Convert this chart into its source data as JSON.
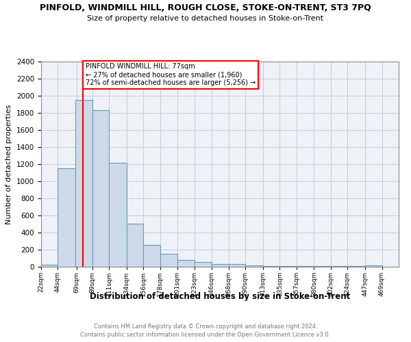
{
  "title": "PINFOLD, WINDMILL HILL, ROUGH CLOSE, STOKE-ON-TRENT, ST3 7PQ",
  "subtitle": "Size of property relative to detached houses in Stoke-on-Trent",
  "xlabel": "Distribution of detached houses by size in Stoke-on-Trent",
  "ylabel": "Number of detached properties",
  "bar_left_edges": [
    22,
    44,
    67,
    89,
    111,
    134,
    156,
    178,
    201,
    223,
    246,
    268,
    290,
    313,
    335,
    357,
    380,
    402,
    424,
    447
  ],
  "bar_widths": [
    22,
    23,
    22,
    22,
    23,
    22,
    22,
    23,
    22,
    23,
    22,
    22,
    23,
    22,
    22,
    23,
    22,
    22,
    23,
    22
  ],
  "bar_heights": [
    25,
    1150,
    1950,
    1830,
    1220,
    505,
    260,
    150,
    80,
    55,
    35,
    35,
    15,
    10,
    8,
    5,
    5,
    5,
    5,
    15
  ],
  "bar_color": "#ccd9e8",
  "bar_edge_color": "#6699bb",
  "grid_color": "#b8c8d8",
  "property_line_x": 77,
  "property_line_color": "red",
  "annotation_text": "PINFOLD WINDMILL HILL: 77sqm\n← 27% of detached houses are smaller (1,960)\n72% of semi-detached houses are larger (5,256) →",
  "xlim_left": 22,
  "xlim_right": 491,
  "ylim_top": 2400,
  "yticks": [
    0,
    200,
    400,
    600,
    800,
    1000,
    1200,
    1400,
    1600,
    1800,
    2000,
    2200,
    2400
  ],
  "xtick_labels": [
    "22sqm",
    "44sqm",
    "69sqm",
    "89sqm",
    "111sqm",
    "134sqm",
    "156sqm",
    "178sqm",
    "201sqm",
    "223sqm",
    "246sqm",
    "268sqm",
    "290sqm",
    "313sqm",
    "335sqm",
    "357sqm",
    "380sqm",
    "402sqm",
    "424sqm",
    "447sqm",
    "469sqm"
  ],
  "xtick_positions": [
    22,
    44,
    69,
    89,
    111,
    134,
    156,
    178,
    201,
    223,
    246,
    268,
    290,
    313,
    335,
    357,
    380,
    402,
    424,
    447,
    469
  ],
  "footer_line1": "Contains HM Land Registry data © Crown copyright and database right 2024.",
  "footer_line2": "Contains public sector information licensed under the Open Government Licence v3.0.",
  "bg_color": "#eef2f7"
}
